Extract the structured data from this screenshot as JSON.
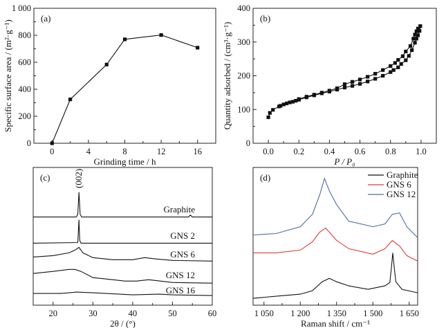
{
  "chart_data": [
    {
      "panel": "(a)",
      "type": "line",
      "xlabel": "Grinding time / h",
      "ylabel": "Specific surface area / (m²·g⁻¹)",
      "xlim": [
        -2,
        18
      ],
      "ylim": [
        0,
        1000
      ],
      "xticks": [
        0,
        4,
        8,
        12,
        16
      ],
      "xtick_labels": [
        "0",
        "4",
        "8",
        "12",
        "16"
      ],
      "yticks": [
        0,
        200,
        400,
        600,
        800,
        1000
      ],
      "ytick_labels": [
        "0",
        "200",
        "400",
        "600",
        "800",
        "1 000"
      ],
      "marker": "square",
      "color": "#111111",
      "grid": false,
      "series": [
        {
          "x": [
            0,
            2,
            6,
            8,
            12,
            16
          ],
          "y": [
            0,
            325,
            583,
            770,
            802,
            708
          ]
        }
      ]
    },
    {
      "panel": "(b)",
      "type": "line",
      "xlabel": "P / P₀",
      "ylabel": "Quantity adsorbed / (cm³·g⁻¹)",
      "xlim": [
        -0.1,
        1.1
      ],
      "ylim": [
        0,
        400
      ],
      "xticks": [
        0,
        0.2,
        0.4,
        0.6,
        0.8,
        1.0
      ],
      "xtick_labels": [
        "0.0",
        "0.2",
        "0.4",
        "0.6",
        "0.8",
        "1.0"
      ],
      "yticks": [
        0,
        100,
        200,
        300,
        400
      ],
      "ytick_labels": [
        "0",
        "100",
        "200",
        "300",
        "400"
      ],
      "marker": "square",
      "color": "#111111",
      "grid": false,
      "series": [
        {
          "x": [
            0.0,
            0.01,
            0.03,
            0.07,
            0.08,
            0.1,
            0.12,
            0.14,
            0.16,
            0.18,
            0.2,
            0.25,
            0.3,
            0.35,
            0.4,
            0.45,
            0.5,
            0.55,
            0.6,
            0.65,
            0.7,
            0.75,
            0.8,
            0.82,
            0.85,
            0.87,
            0.9,
            0.92,
            0.94,
            0.96,
            0.97,
            0.98,
            0.99,
            0.995
          ],
          "y": [
            77,
            90,
            99,
            109,
            111,
            115,
            118,
            121,
            123,
            126,
            129,
            136,
            142,
            148,
            153,
            159,
            165,
            170,
            176,
            183,
            191,
            200,
            211,
            217,
            225,
            235,
            246,
            259,
            276,
            298,
            310,
            320,
            333,
            347
          ]
        },
        {
          "x": [
            0.995,
            0.98,
            0.97,
            0.96,
            0.95,
            0.93,
            0.9,
            0.88,
            0.85,
            0.83,
            0.8,
            0.75,
            0.7,
            0.65,
            0.6,
            0.55,
            0.5,
            0.45,
            0.4,
            0.35,
            0.3,
            0.25,
            0.2
          ],
          "y": [
            347,
            340,
            332,
            322,
            310,
            288,
            272,
            258,
            247,
            238,
            229,
            217,
            206,
            197,
            189,
            182,
            175,
            163,
            156,
            150,
            144,
            138,
            131
          ]
        }
      ]
    },
    {
      "panel": "(c)",
      "type": "line",
      "xlabel": "2θ / (°)",
      "ylabel": "",
      "xlim": [
        15,
        60
      ],
      "ylim": [
        0,
        100
      ],
      "xticks": [
        20,
        30,
        40,
        50,
        60
      ],
      "xtick_labels": [
        "20",
        "30",
        "40",
        "50",
        "60"
      ],
      "yticks": [],
      "grid": false,
      "annotations": [
        {
          "text": "(002)",
          "x": 26.5
        }
      ],
      "series": [
        {
          "name": "Graphite",
          "color": "#111111",
          "x": [
            15,
            25.8,
            26.2,
            26.5,
            26.8,
            27.2,
            54,
            54.5,
            55,
            60
          ],
          "y": [
            64,
            64,
            66,
            82,
            66,
            64,
            64,
            65.5,
            64,
            64
          ]
        },
        {
          "name": "GNS 2",
          "color": "#111111",
          "x": [
            15,
            26.2,
            26.5,
            26.7,
            27,
            60
          ],
          "y": [
            45,
            45.5,
            62,
            47,
            45,
            45
          ]
        },
        {
          "name": "GNS 6",
          "color": "#111111",
          "x": [
            15,
            20,
            24,
            25.5,
            26.5,
            27.5,
            30,
            35,
            40,
            43,
            46,
            50,
            60
          ],
          "y": [
            35,
            36,
            38,
            40,
            42,
            38,
            34.5,
            33,
            33,
            34.5,
            33.5,
            32.5,
            32
          ]
        },
        {
          "name": "GNS 12",
          "color": "#111111",
          "x": [
            15,
            20,
            24,
            25.5,
            27,
            30,
            35,
            38,
            41,
            44,
            47,
            50,
            60
          ],
          "y": [
            23,
            24.5,
            26,
            26,
            24.5,
            20,
            18.5,
            17.5,
            17.5,
            18.5,
            17.5,
            16.5,
            16
          ]
        },
        {
          "name": "GNS 16",
          "color": "#111111",
          "x": [
            15,
            22,
            26,
            30,
            40,
            46.5,
            50,
            60
          ],
          "y": [
            8.5,
            8.5,
            9.5,
            9,
            7.5,
            8,
            7.5,
            7
          ]
        }
      ]
    },
    {
      "panel": "(d)",
      "type": "line",
      "xlabel": "Raman shift / cm⁻¹",
      "ylabel": "",
      "xlim": [
        1005,
        1685
      ],
      "ylim": [
        0,
        100
      ],
      "xticks": [
        1050,
        1200,
        1350,
        1500,
        1650
      ],
      "xtick_labels": [
        "1 050",
        "1 200",
        "1 350",
        "1 500",
        "1 650"
      ],
      "yticks": [],
      "grid": false,
      "legend": "top-right",
      "series": [
        {
          "name": "Graphite",
          "color": "#111111",
          "x": [
            1005,
            1100,
            1200,
            1250,
            1290,
            1320,
            1350,
            1400,
            1480,
            1550,
            1570,
            1577,
            1582,
            1588,
            1595,
            1620,
            1685
          ],
          "y": [
            5,
            6.5,
            8,
            10.5,
            17,
            19.5,
            17,
            14,
            11.5,
            14,
            16.5,
            28,
            38,
            28,
            17,
            11.5,
            9
          ]
        },
        {
          "name": "GNS 6",
          "color": "#e03a3a",
          "x": [
            1005,
            1100,
            1200,
            1250,
            1280,
            1305,
            1330,
            1350,
            1400,
            1500,
            1550,
            1580,
            1610,
            1640,
            1685
          ],
          "y": [
            38,
            38,
            40,
            46,
            53,
            56,
            51,
            47,
            41,
            37,
            41,
            47,
            43,
            36,
            32
          ]
        },
        {
          "name": "GNS 12",
          "color": "#4a6aaa",
          "x": [
            1005,
            1100,
            1200,
            1250,
            1280,
            1300,
            1320,
            1350,
            1400,
            1500,
            1550,
            1580,
            1610,
            1640,
            1685
          ],
          "y": [
            51,
            52,
            57,
            66,
            80,
            92,
            83,
            73,
            61,
            57,
            59,
            66,
            67,
            57,
            49
          ]
        }
      ]
    }
  ]
}
